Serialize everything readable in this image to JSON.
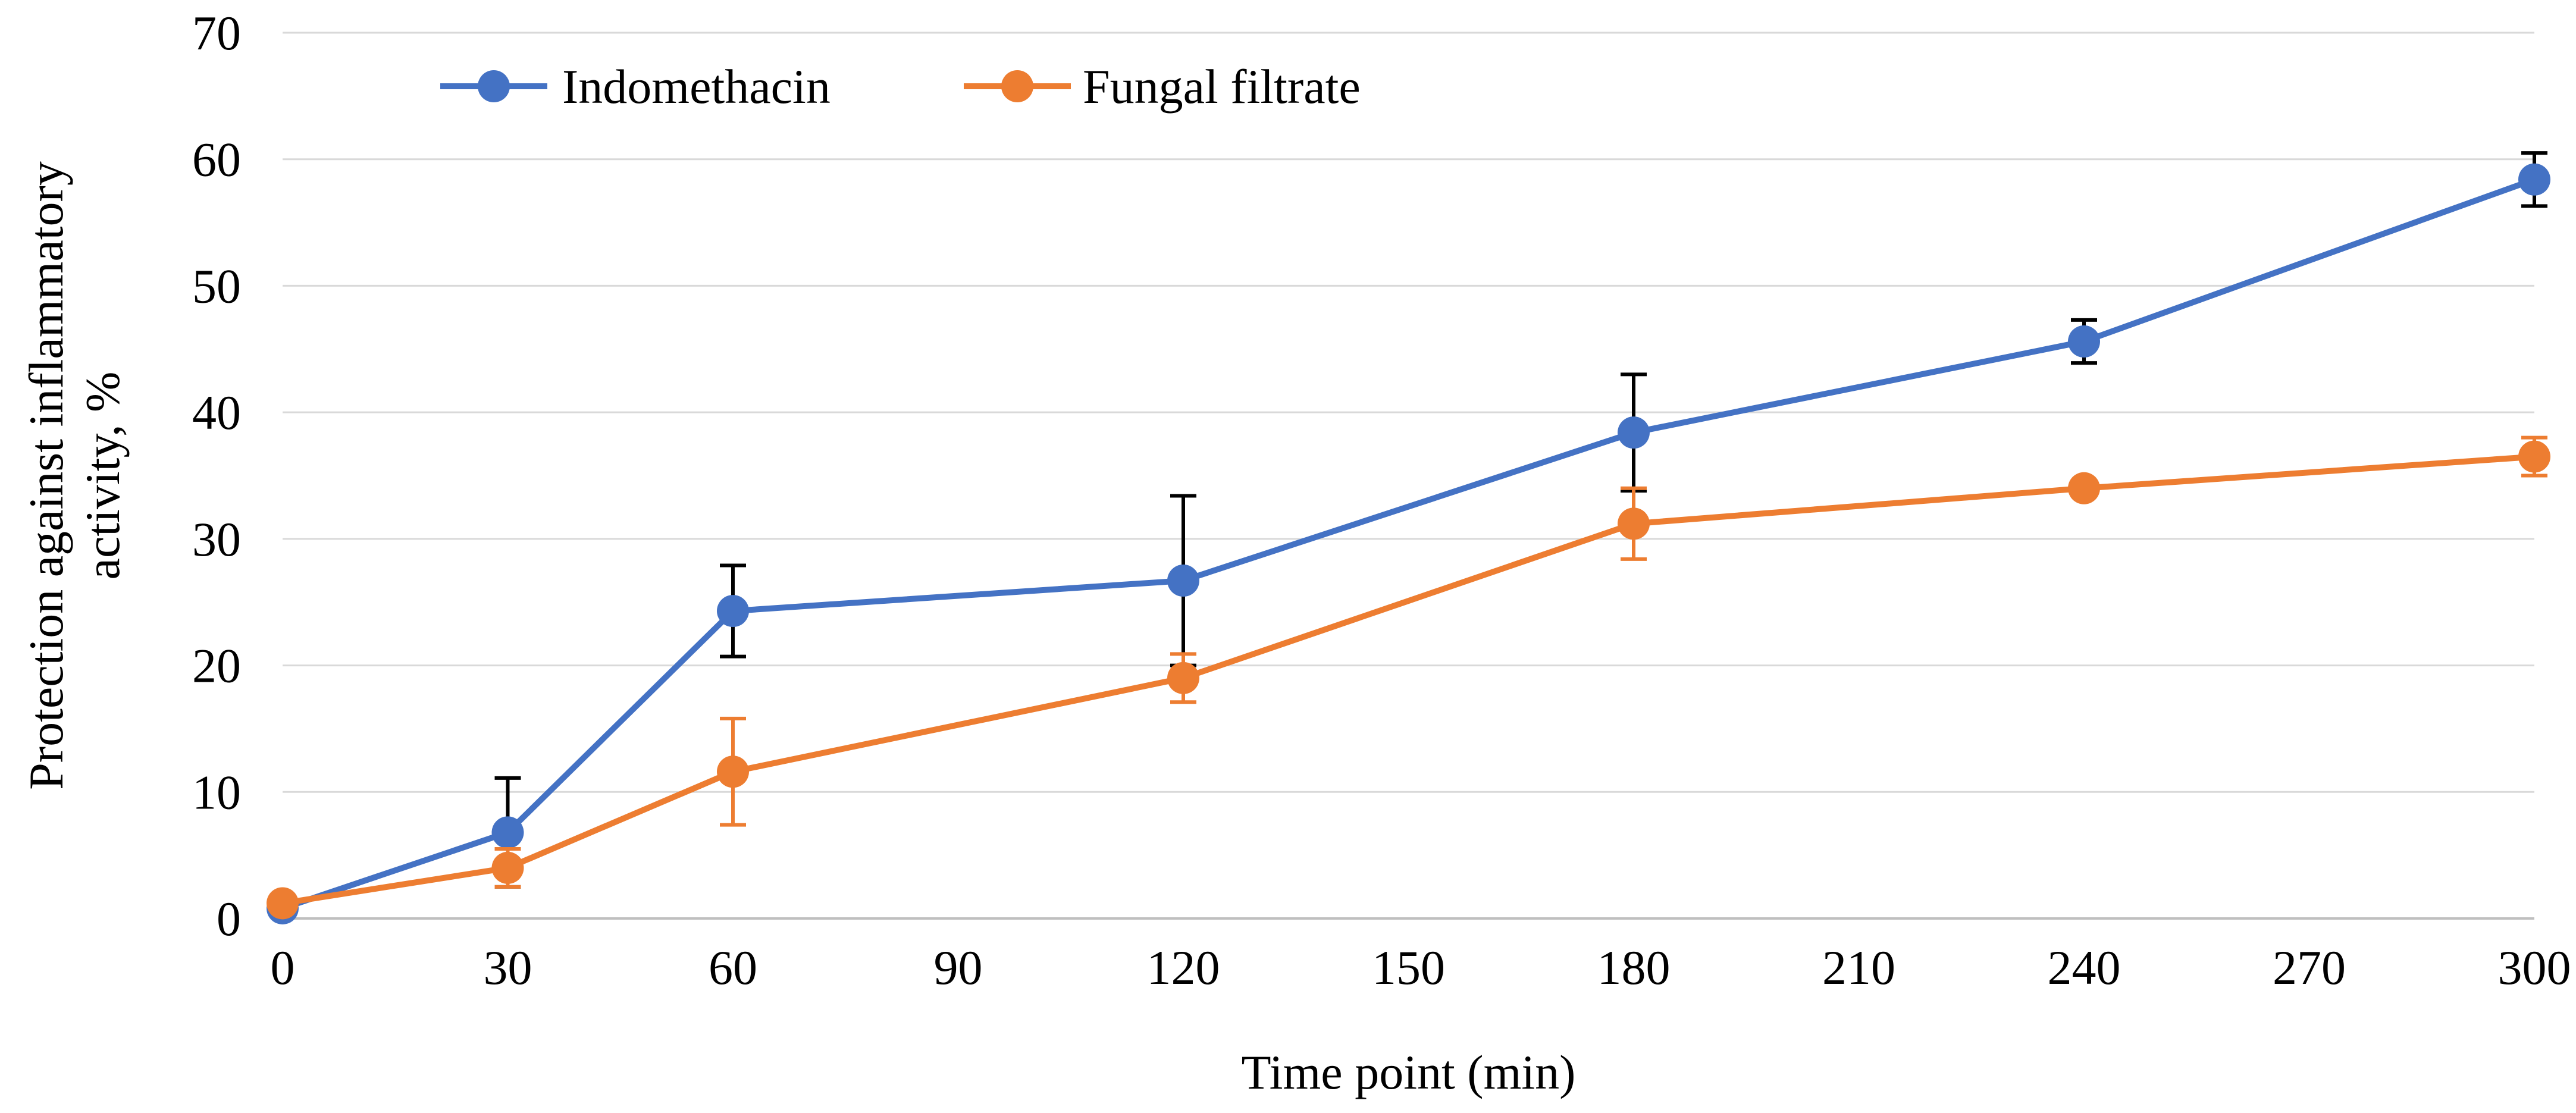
{
  "chart_data": {
    "type": "line",
    "title": "",
    "xlabel": "Time point (min)",
    "ylabel_lines": [
      "Protection against inflammatory",
      "activity, %"
    ],
    "xlim": [
      0,
      300
    ],
    "ylim": [
      0,
      70
    ],
    "xticks": [
      0,
      30,
      60,
      90,
      120,
      150,
      180,
      210,
      240,
      270,
      300
    ],
    "yticks": [
      0,
      10,
      20,
      30,
      40,
      50,
      60,
      70
    ],
    "grid": "horizontal",
    "legend_position": "top-left",
    "series": [
      {
        "name": "Indomethacin",
        "color": "#4472C4",
        "errorbar_color": "#000000",
        "x": [
          0,
          30,
          60,
          120,
          180,
          240,
          300
        ],
        "y": [
          0.8,
          6.8,
          24.3,
          26.7,
          38.4,
          45.6,
          58.4
        ],
        "err": [
          0.5,
          4.3,
          3.6,
          6.7,
          4.6,
          1.7,
          2.1
        ]
      },
      {
        "name": "Fungal filtrate",
        "color": "#ED7D31",
        "errorbar_color": "#ED7D31",
        "x": [
          0,
          30,
          60,
          120,
          180,
          240,
          300
        ],
        "y": [
          1.2,
          4.0,
          11.6,
          19.0,
          31.2,
          34.0,
          36.5
        ],
        "err": [
          0.5,
          1.5,
          4.2,
          1.9,
          2.8,
          0.6,
          1.5
        ]
      }
    ]
  }
}
